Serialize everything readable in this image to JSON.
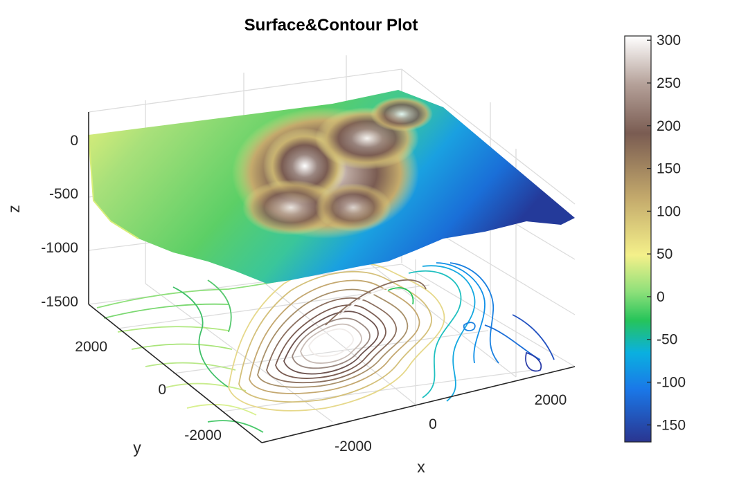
{
  "chart_data": {
    "type": "surface-contour",
    "title": "Surface&Contour Plot",
    "xlabel": "x",
    "ylabel": "y",
    "zlabel": "z",
    "x_ticks": [
      "-2000",
      "0",
      "2000"
    ],
    "y_ticks": [
      "2000",
      "0",
      "-2000"
    ],
    "z_ticks": [
      "0",
      "-500",
      "-1000",
      "-1500"
    ],
    "zlim": [
      -1500,
      300
    ],
    "colorbar": {
      "ticks": [
        "300",
        "250",
        "200",
        "150",
        "100",
        "50",
        "0",
        "-50",
        "-100",
        "-150"
      ],
      "range": [
        -170,
        305
      ],
      "colormap": "terrain",
      "stops": [
        "#2a3590",
        "#1a78e8",
        "#0ab0e0",
        "#26c45a",
        "#8ee07a",
        "#f4f08a",
        "#c4aa6c",
        "#7a5c52",
        "#b4a098",
        "#ffffff"
      ]
    },
    "grid": true,
    "colors": {
      "background": "#ffffff",
      "grid": "#dcdcdc",
      "axis": "#262626"
    }
  }
}
